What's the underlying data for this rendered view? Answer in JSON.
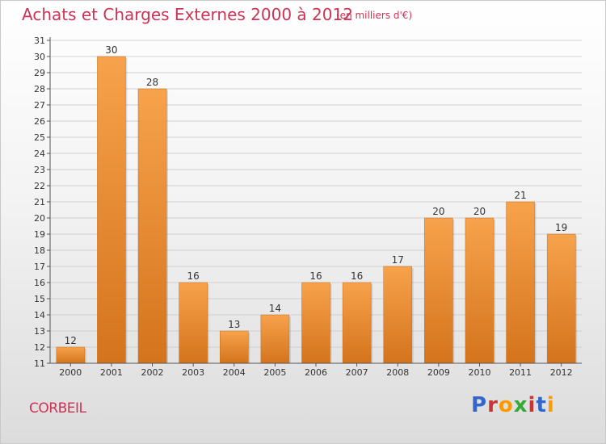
{
  "title": "Achats et Charges Externes 2000 à 2012",
  "unit": "(en milliers d'€)",
  "city": "CORBEIL",
  "logo": {
    "text": "Proxiti",
    "colors": [
      "#3366cc",
      "#cc3333",
      "#ff9900",
      "#33aa33",
      "#cc3333",
      "#3366cc",
      "#ff9900"
    ]
  },
  "colors": {
    "bar_light": "#f7a24c",
    "bar_dark": "#d4741c",
    "title": "#cc3355"
  },
  "chart_data": {
    "type": "bar",
    "categories": [
      "2000",
      "2001",
      "2002",
      "2003",
      "2004",
      "2005",
      "2006",
      "2007",
      "2008",
      "2009",
      "2010",
      "2011",
      "2012"
    ],
    "values": [
      12,
      30,
      28,
      16,
      13,
      14,
      16,
      16,
      17,
      20,
      20,
      21,
      19
    ],
    "title": "Achats et Charges Externes 2000 à 2012",
    "ylim": [
      11,
      31
    ],
    "yticks": [
      11,
      12,
      13,
      14,
      15,
      16,
      17,
      18,
      19,
      20,
      21,
      22,
      23,
      24,
      25,
      26,
      27,
      28,
      29,
      30,
      31
    ],
    "grid": true
  }
}
